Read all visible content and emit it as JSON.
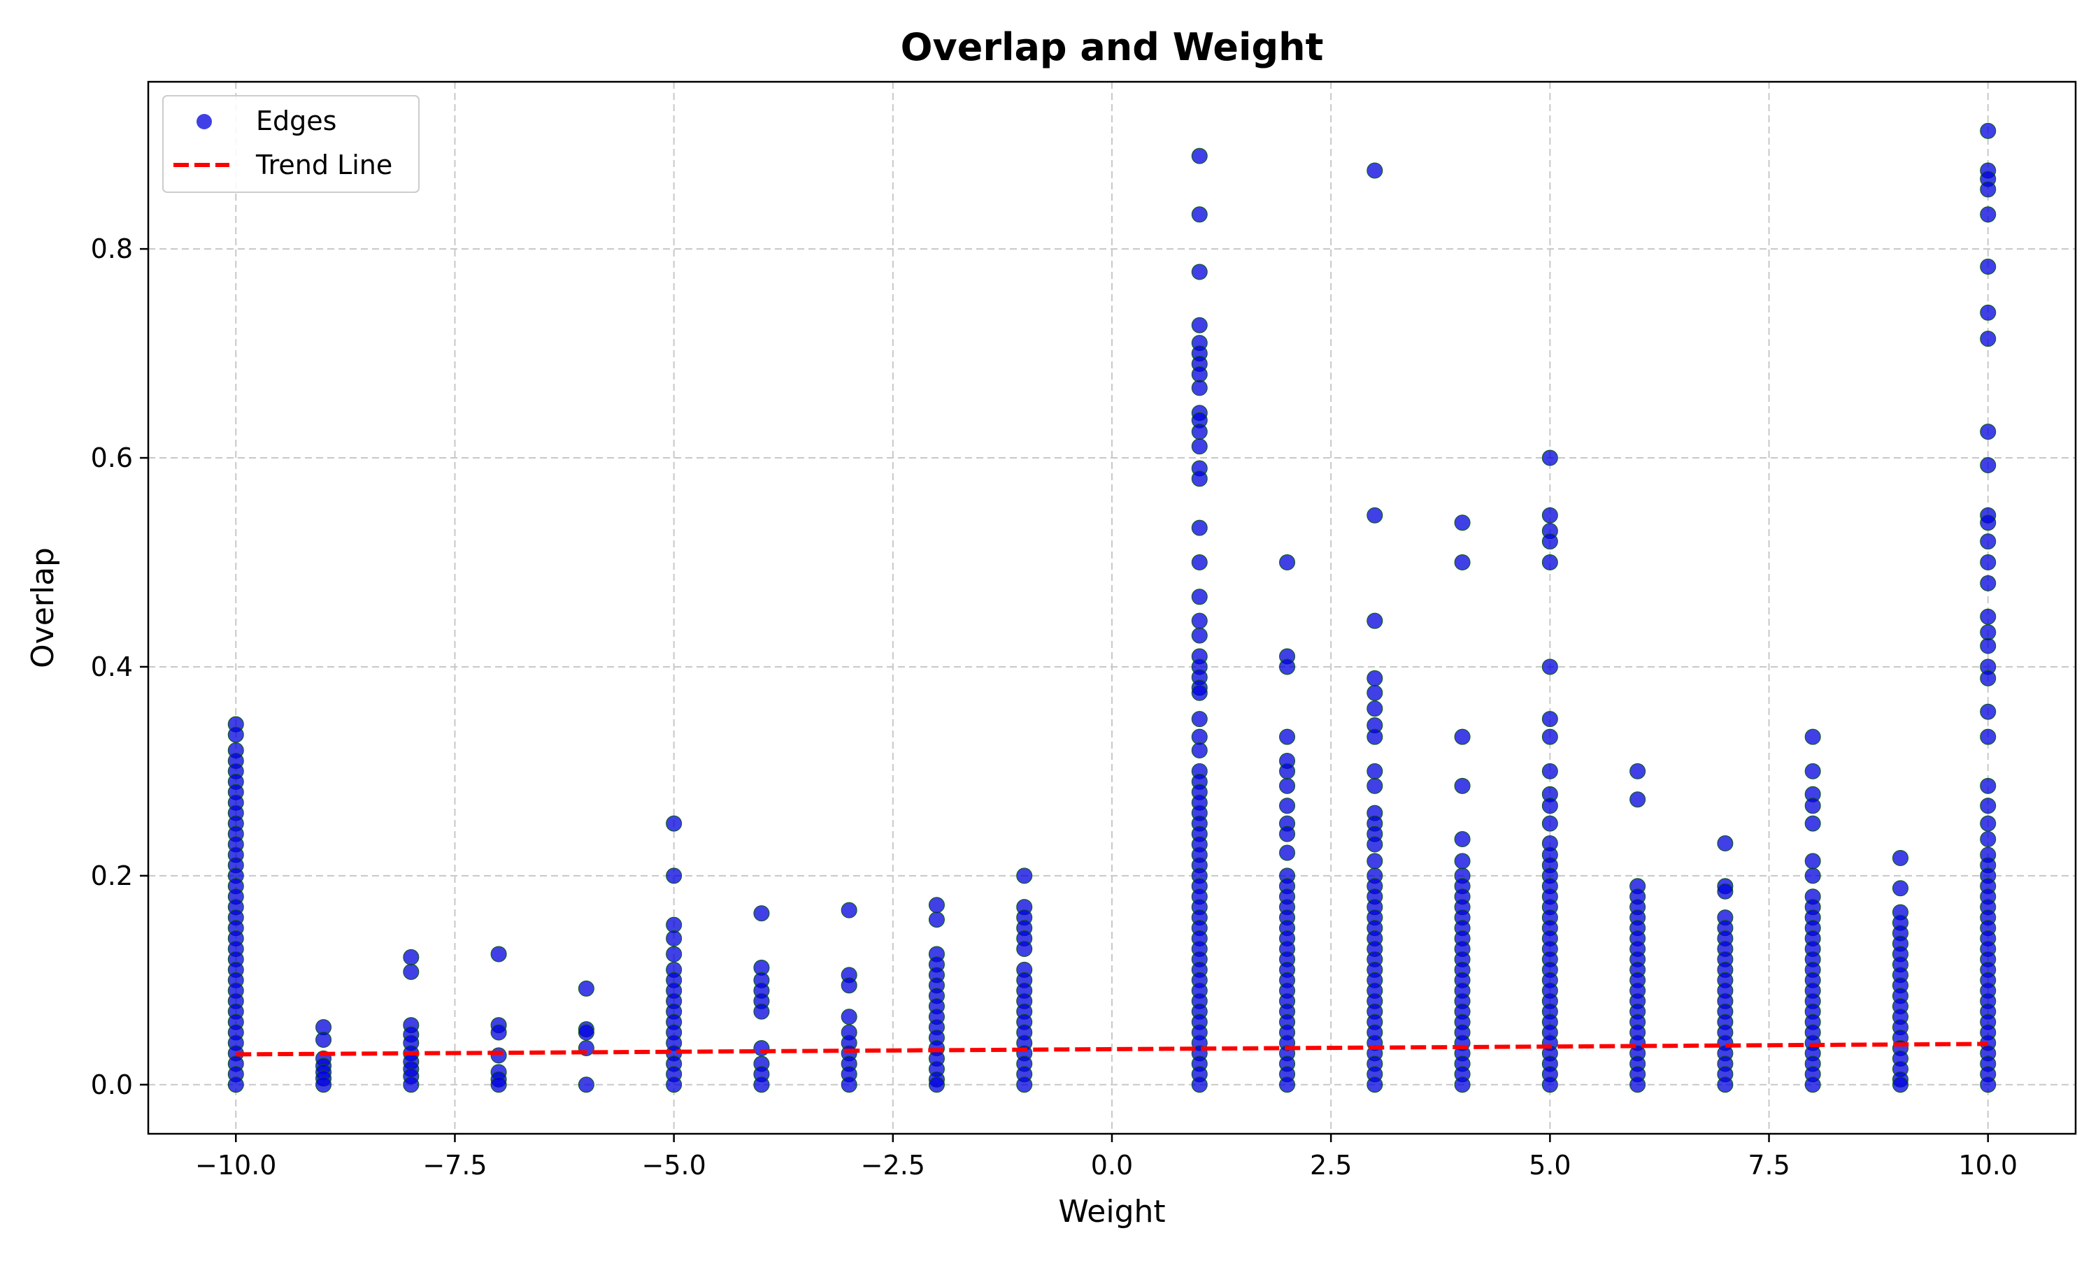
{
  "chart_data": {
    "type": "scatter",
    "title": "Overlap and Weight",
    "xlabel": "Weight",
    "ylabel": "Overlap",
    "xlim": [
      -11,
      11
    ],
    "ylim": [
      -0.047,
      0.96
    ],
    "x_ticks": [
      -10.0,
      -7.5,
      -5.0,
      -2.5,
      0.0,
      2.5,
      5.0,
      7.5,
      10.0
    ],
    "x_tick_labels": [
      "−10.0",
      "−7.5",
      "−5.0",
      "−2.5",
      "0.0",
      "2.5",
      "5.0",
      "7.5",
      "10.0"
    ],
    "y_ticks": [
      0.0,
      0.2,
      0.4,
      0.6,
      0.8
    ],
    "y_tick_labels": [
      "0.0",
      "0.2",
      "0.4",
      "0.6",
      "0.8"
    ],
    "grid": true,
    "legend_position": "top-left",
    "legend": [
      {
        "label": "Edges",
        "kind": "marker",
        "color": "#0000dd"
      },
      {
        "label": "Trend Line",
        "kind": "dashed-line",
        "color": "#ff0000"
      }
    ],
    "colors": {
      "points": "#0000dd",
      "point_edge": "#0a5a0a",
      "trend": "#ff0000",
      "grid": "#c8c8c8"
    },
    "series": [
      {
        "name": "Edges",
        "kind": "scatter",
        "columns": [
          {
            "x": -10,
            "max": 0.345,
            "values": [
              0.345,
              0.335,
              0.32,
              0.31,
              0.3,
              0.29,
              0.28,
              0.27,
              0.26,
              0.25,
              0.24,
              0.23,
              0.22,
              0.21,
              0.2,
              0.19,
              0.18,
              0.17,
              0.16,
              0.15,
              0.14,
              0.13,
              0.12,
              0.11,
              0.1,
              0.09,
              0.08,
              0.07,
              0.06,
              0.05,
              0.04,
              0.03,
              0.02,
              0.01,
              0.0
            ]
          },
          {
            "x": -9,
            "max": 0.055,
            "values": [
              0.055,
              0.043,
              0.025,
              0.018,
              0.012,
              0.006,
              0.0
            ]
          },
          {
            "x": -8,
            "max": 0.122,
            "values": [
              0.122,
              0.108,
              0.057,
              0.048,
              0.04,
              0.03,
              0.022,
              0.015,
              0.008,
              0.0
            ]
          },
          {
            "x": -7,
            "max": 0.125,
            "values": [
              0.125,
              0.057,
              0.05,
              0.028,
              0.012,
              0.005,
              0.0
            ]
          },
          {
            "x": -6,
            "max": 0.092,
            "values": [
              0.092,
              0.053,
              0.05,
              0.035,
              0.0
            ]
          },
          {
            "x": -5,
            "max": 0.25,
            "values": [
              0.25,
              0.2,
              0.153,
              0.14,
              0.125,
              0.11,
              0.1,
              0.09,
              0.08,
              0.07,
              0.06,
              0.05,
              0.04,
              0.03,
              0.02,
              0.01,
              0.0
            ]
          },
          {
            "x": -4,
            "max": 0.164,
            "values": [
              0.164,
              0.112,
              0.1,
              0.09,
              0.08,
              0.07,
              0.035,
              0.02,
              0.01,
              0.0
            ]
          },
          {
            "x": -3,
            "max": 0.167,
            "values": [
              0.167,
              0.105,
              0.095,
              0.065,
              0.05,
              0.04,
              0.03,
              0.02,
              0.01,
              0.0
            ]
          },
          {
            "x": -2,
            "max": 0.172,
            "values": [
              0.172,
              0.158,
              0.125,
              0.115,
              0.105,
              0.095,
              0.085,
              0.075,
              0.065,
              0.055,
              0.045,
              0.035,
              0.025,
              0.015,
              0.005,
              0.0
            ]
          },
          {
            "x": -1,
            "max": 0.2,
            "values": [
              0.2,
              0.17,
              0.16,
              0.15,
              0.14,
              0.13,
              0.11,
              0.1,
              0.09,
              0.08,
              0.07,
              0.06,
              0.05,
              0.04,
              0.03,
              0.02,
              0.01,
              0.0
            ]
          },
          {
            "x": 1,
            "max": 0.889,
            "values": [
              0.889,
              0.833,
              0.778,
              0.727,
              0.71,
              0.7,
              0.69,
              0.68,
              0.667,
              0.643,
              0.636,
              0.625,
              0.611,
              0.59,
              0.58,
              0.533,
              0.5,
              0.467,
              0.444,
              0.43,
              0.41,
              0.4,
              0.39,
              0.38,
              0.375,
              0.35,
              0.333,
              0.32,
              0.3,
              0.29,
              0.28,
              0.27,
              0.26,
              0.25,
              0.24,
              0.23,
              0.22,
              0.21,
              0.2,
              0.19,
              0.18,
              0.17,
              0.16,
              0.15,
              0.14,
              0.13,
              0.12,
              0.11,
              0.1,
              0.09,
              0.08,
              0.07,
              0.06,
              0.05,
              0.04,
              0.03,
              0.02,
              0.01,
              0.0
            ]
          },
          {
            "x": 2,
            "max": 0.5,
            "values": [
              0.5,
              0.41,
              0.4,
              0.333,
              0.31,
              0.3,
              0.286,
              0.267,
              0.25,
              0.24,
              0.222,
              0.2,
              0.19,
              0.18,
              0.17,
              0.16,
              0.15,
              0.14,
              0.13,
              0.12,
              0.11,
              0.1,
              0.09,
              0.08,
              0.07,
              0.06,
              0.05,
              0.04,
              0.03,
              0.02,
              0.01,
              0.0
            ]
          },
          {
            "x": 3,
            "max": 0.875,
            "values": [
              0.875,
              0.545,
              0.444,
              0.389,
              0.375,
              0.36,
              0.344,
              0.333,
              0.3,
              0.286,
              0.26,
              0.25,
              0.24,
              0.23,
              0.214,
              0.2,
              0.19,
              0.18,
              0.17,
              0.16,
              0.15,
              0.14,
              0.13,
              0.12,
              0.11,
              0.1,
              0.09,
              0.08,
              0.07,
              0.06,
              0.05,
              0.04,
              0.03,
              0.02,
              0.01,
              0.0
            ]
          },
          {
            "x": 4,
            "max": 0.538,
            "values": [
              0.538,
              0.5,
              0.333,
              0.286,
              0.235,
              0.214,
              0.2,
              0.19,
              0.18,
              0.17,
              0.16,
              0.15,
              0.14,
              0.13,
              0.12,
              0.11,
              0.1,
              0.09,
              0.08,
              0.07,
              0.06,
              0.05,
              0.04,
              0.03,
              0.02,
              0.01,
              0.0
            ]
          },
          {
            "x": 5,
            "max": 0.6,
            "values": [
              0.6,
              0.545,
              0.53,
              0.52,
              0.5,
              0.4,
              0.35,
              0.333,
              0.3,
              0.278,
              0.267,
              0.25,
              0.231,
              0.22,
              0.21,
              0.2,
              0.19,
              0.18,
              0.17,
              0.16,
              0.15,
              0.14,
              0.13,
              0.12,
              0.11,
              0.1,
              0.09,
              0.08,
              0.07,
              0.06,
              0.05,
              0.04,
              0.03,
              0.02,
              0.01,
              0.0
            ]
          },
          {
            "x": 6,
            "max": 0.3,
            "values": [
              0.3,
              0.273,
              0.19,
              0.18,
              0.17,
              0.16,
              0.15,
              0.14,
              0.13,
              0.12,
              0.11,
              0.1,
              0.09,
              0.08,
              0.07,
              0.06,
              0.05,
              0.04,
              0.03,
              0.02,
              0.01,
              0.0
            ]
          },
          {
            "x": 7,
            "max": 0.231,
            "values": [
              0.231,
              0.19,
              0.185,
              0.16,
              0.15,
              0.14,
              0.13,
              0.12,
              0.11,
              0.1,
              0.09,
              0.08,
              0.07,
              0.06,
              0.05,
              0.04,
              0.03,
              0.02,
              0.01,
              0.0
            ]
          },
          {
            "x": 8,
            "max": 0.333,
            "values": [
              0.333,
              0.3,
              0.278,
              0.267,
              0.25,
              0.214,
              0.2,
              0.18,
              0.17,
              0.16,
              0.15,
              0.14,
              0.13,
              0.12,
              0.11,
              0.1,
              0.09,
              0.08,
              0.07,
              0.06,
              0.05,
              0.04,
              0.03,
              0.02,
              0.01,
              0.0
            ]
          },
          {
            "x": 9,
            "max": 0.217,
            "values": [
              0.217,
              0.188,
              0.165,
              0.155,
              0.145,
              0.135,
              0.125,
              0.115,
              0.105,
              0.095,
              0.085,
              0.075,
              0.065,
              0.055,
              0.045,
              0.035,
              0.025,
              0.015,
              0.005,
              0.0
            ]
          },
          {
            "x": 10,
            "max": 0.913,
            "values": [
              0.913,
              0.875,
              0.867,
              0.857,
              0.833,
              0.783,
              0.739,
              0.714,
              0.625,
              0.593,
              0.545,
              0.538,
              0.52,
              0.5,
              0.48,
              0.448,
              0.433,
              0.42,
              0.4,
              0.389,
              0.357,
              0.333,
              0.286,
              0.267,
              0.25,
              0.235,
              0.22,
              0.21,
              0.2,
              0.19,
              0.18,
              0.17,
              0.16,
              0.15,
              0.14,
              0.13,
              0.12,
              0.11,
              0.1,
              0.09,
              0.08,
              0.07,
              0.06,
              0.05,
              0.04,
              0.03,
              0.02,
              0.01,
              0.0
            ]
          }
        ]
      },
      {
        "name": "Trend Line",
        "kind": "line",
        "points": [
          [
            -10,
            0.029
          ],
          [
            10,
            0.039
          ]
        ]
      }
    ]
  }
}
